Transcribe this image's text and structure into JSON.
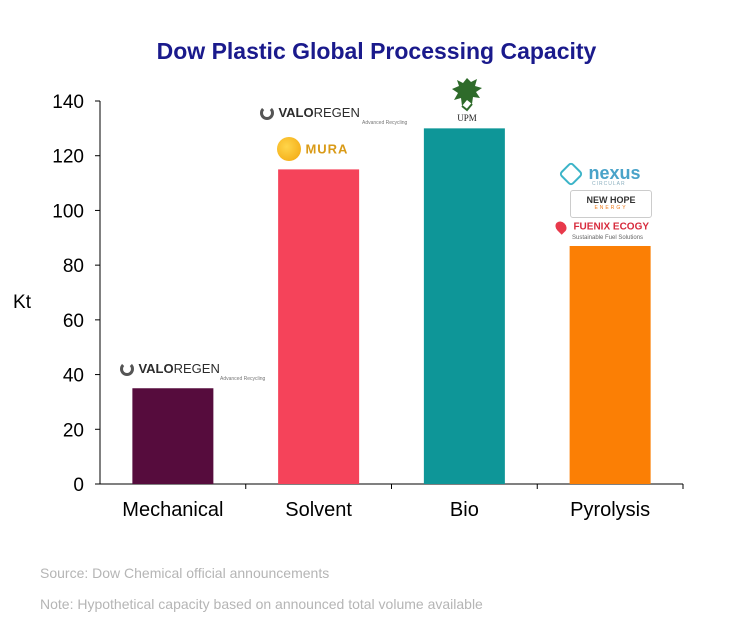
{
  "chart_data": {
    "type": "bar",
    "title": "Dow Plastic Global Processing Capacity",
    "ylabel": "Kt",
    "xlabel": "",
    "categories": [
      "Mechanical",
      "Solvent",
      "Bio",
      "Pyrolysis"
    ],
    "values": [
      35,
      115,
      130,
      87
    ],
    "ylim": [
      0,
      140
    ],
    "yticks": [
      0,
      20,
      40,
      60,
      80,
      100,
      120,
      140
    ],
    "bar_colors": [
      "#560c3d",
      "#f5435a",
      "#0e9698",
      "#fb7f05"
    ],
    "grid": false,
    "partner_logos": {
      "Mechanical": [
        "VALOREGEN"
      ],
      "Solvent": [
        "VALOREGEN",
        "MURA"
      ],
      "Bio": [
        "UPM"
      ],
      "Pyrolysis": [
        "nexus",
        "NEW HOPE",
        "FUENIX ECOGY"
      ]
    }
  },
  "logos": {
    "valoregen": {
      "valo": "VALO",
      "regen": "REGEN",
      "tag": "Advanced Recycling"
    },
    "mura": {
      "text": "MURA"
    },
    "upm": {
      "text": "UPM"
    },
    "nexus": {
      "text": "nexus",
      "sub": "CIRCULAR"
    },
    "newhope": {
      "line1": "NEW HOPE",
      "line2": "ENERGY"
    },
    "fuenix": {
      "text": "FUENIX ECOGY",
      "sub": "Sustainable Fuel Solutions"
    }
  },
  "footer": {
    "source": "Source: Dow Chemical official announcements",
    "note": "Note: Hypothetical capacity based on announced total volume available"
  }
}
